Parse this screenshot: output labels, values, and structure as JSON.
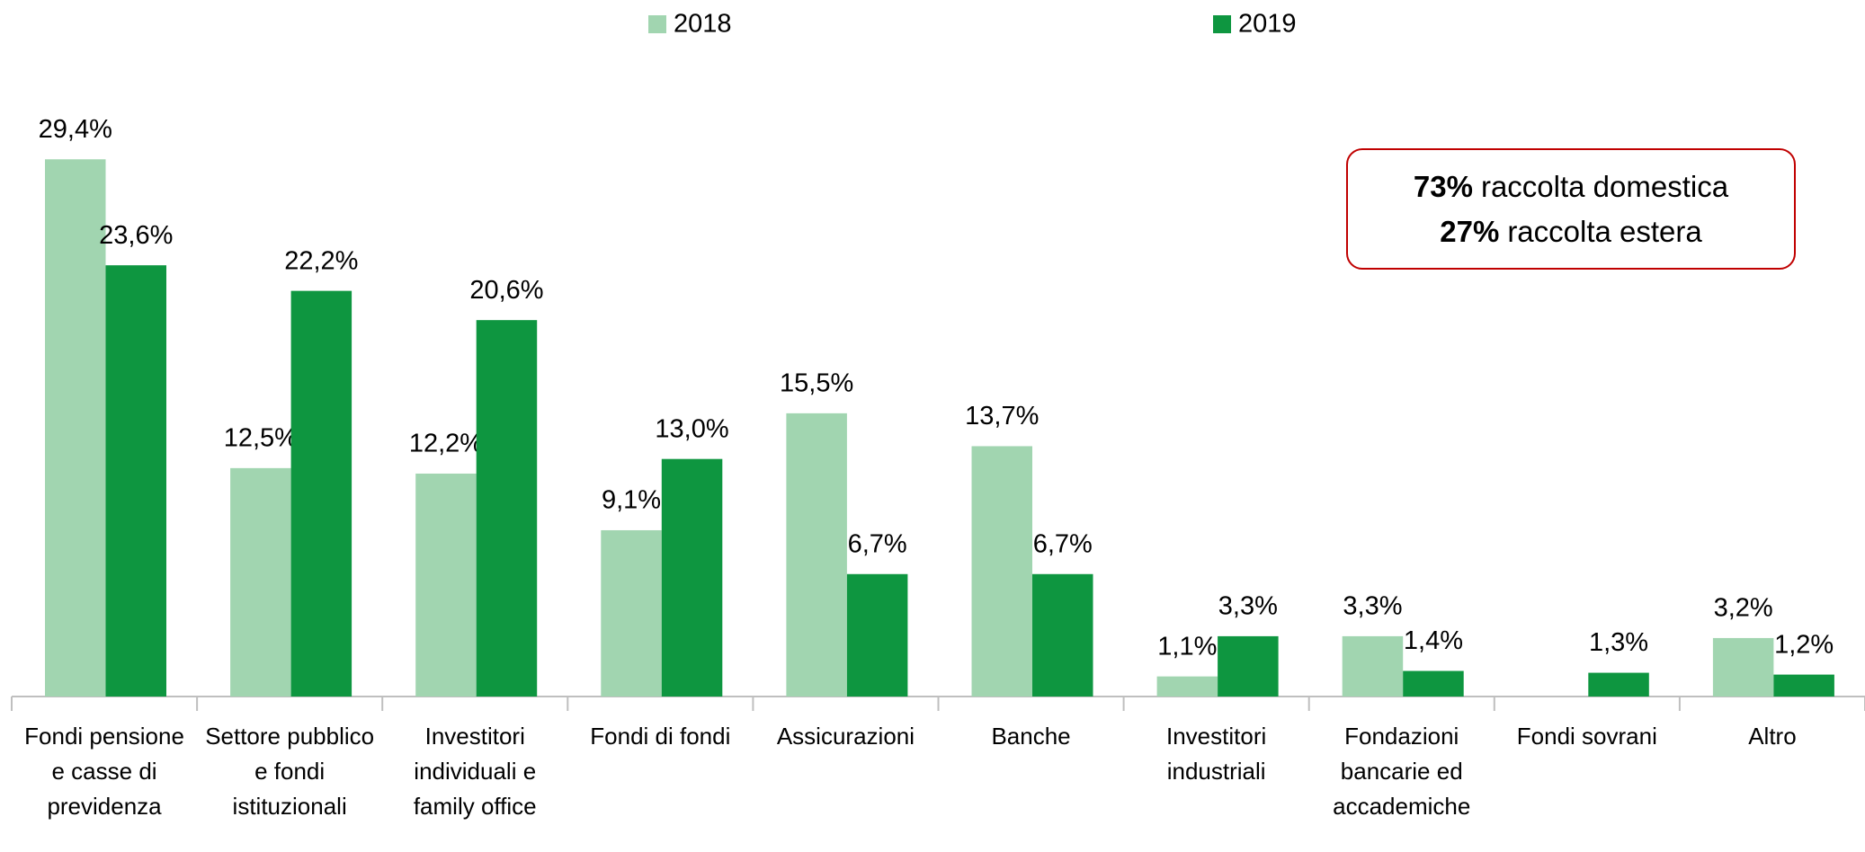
{
  "chart_data": {
    "type": "bar",
    "categories": [
      "Fondi pensione e casse di previdenza",
      "Settore pubblico e fondi istituzionali",
      "Investitori individuali e family office",
      "Fondi di fondi",
      "Assicurazioni",
      "Banche",
      "Investitori industriali",
      "Fondazioni bancarie ed accademiche",
      "Fondi sovrani",
      "Altro"
    ],
    "series": [
      {
        "name": "2018",
        "color": "#a1d5b0",
        "values": [
          29.4,
          12.5,
          12.2,
          9.1,
          15.5,
          13.7,
          1.1,
          3.3,
          null,
          3.2
        ],
        "value_labels": [
          "29,4%",
          "12,5%",
          "12,2%",
          "9,1%",
          "15,5%",
          "13,7%",
          "1,1%",
          "3,3%",
          null,
          "3,2%"
        ]
      },
      {
        "name": "2019",
        "color": "#0e9640",
        "values": [
          23.6,
          22.2,
          20.6,
          13.0,
          6.7,
          6.7,
          3.3,
          1.4,
          1.3,
          1.2
        ],
        "value_labels": [
          "23,6%",
          "22,2%",
          "20,6%",
          "13,0%",
          "6,7%",
          "6,7%",
          "3,3%",
          "1,4%",
          "1,3%",
          "1,2%"
        ]
      }
    ],
    "ylim": [
      0,
      35
    ],
    "legend": "top",
    "annotation": [
      {
        "bold": "73%",
        "text": "raccolta domestica"
      },
      {
        "bold": "27%",
        "text": "raccolta estera"
      }
    ]
  }
}
